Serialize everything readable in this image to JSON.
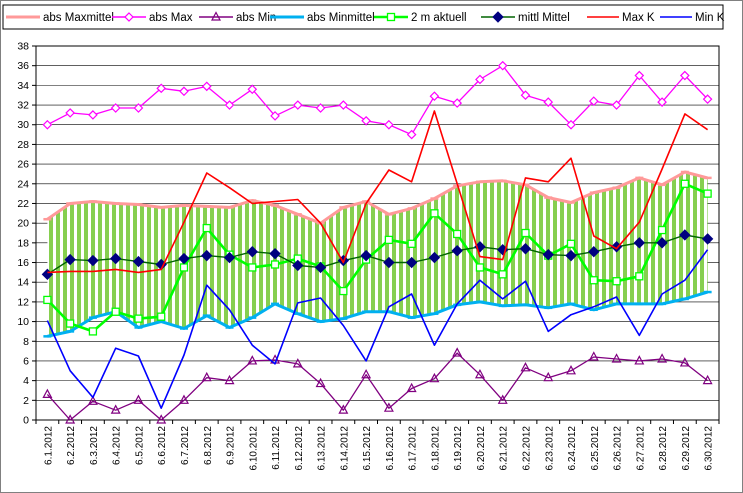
{
  "chart_data": {
    "type": "line",
    "title": "",
    "xlabel": "",
    "ylabel": "",
    "ylim": [
      0,
      38
    ],
    "y_ticks": [
      0,
      2,
      4,
      6,
      8,
      10,
      12,
      14,
      16,
      18,
      20,
      22,
      24,
      26,
      28,
      30,
      32,
      34,
      36,
      38
    ],
    "grid": true,
    "legend_position": "top",
    "band": "Hatched green band between abs Minmittel and abs Maxmittel",
    "categories": [
      "6.1.2012",
      "6.2.2012",
      "6.3.2012",
      "6.4.2012",
      "6.5.2012",
      "6.6.2012",
      "6.7.2012",
      "6.8.2012",
      "6.9.2012",
      "6.10.2012",
      "6.11.2012",
      "6.12.2012",
      "6.13.2012",
      "6.14.2012",
      "6.15.2012",
      "6.16.2012",
      "6.17.2012",
      "6.18.2012",
      "6.19.2012",
      "6.20.2012",
      "6.21.2012",
      "6.22.2012",
      "6.23.2012",
      "6.24.2012",
      "6.25.2012",
      "6.26.2012",
      "6.27.2012",
      "6.28.2012",
      "6.29.2012",
      "6.30.2012"
    ],
    "series": [
      {
        "name": "abs Maxmittel",
        "color": "#ff9999",
        "marker": "dash",
        "values": [
          20.4,
          22.0,
          22.2,
          22.0,
          21.9,
          21.6,
          21.8,
          21.7,
          21.6,
          22.3,
          21.8,
          20.9,
          20.0,
          21.6,
          22.2,
          20.9,
          21.5,
          22.5,
          23.8,
          24.2,
          24.3,
          23.9,
          22.6,
          22.1,
          23.1,
          23.6,
          24.6,
          23.9,
          25.2,
          24.6
        ]
      },
      {
        "name": "abs Max",
        "color": "#ff00ff",
        "marker": "diamond-open",
        "values": [
          30.0,
          31.2,
          31.0,
          31.7,
          31.7,
          33.7,
          33.4,
          33.9,
          32.0,
          33.6,
          30.9,
          32.0,
          31.7,
          32.0,
          30.4,
          30.0,
          29.0,
          32.9,
          32.2,
          34.6,
          36.0,
          33.0,
          32.3,
          30.0,
          32.4,
          32.0,
          35.0,
          32.3,
          35.0,
          32.6
        ]
      },
      {
        "name": "abs Min",
        "color": "#800080",
        "marker": "triangle-open",
        "values": [
          2.6,
          0.0,
          1.9,
          1.0,
          2.0,
          0.0,
          2.0,
          4.3,
          4.0,
          6.0,
          6.1,
          5.7,
          3.7,
          1.0,
          4.6,
          1.2,
          3.2,
          4.2,
          6.8,
          4.6,
          2.0,
          5.3,
          4.3,
          5.0,
          6.4,
          6.2,
          6.0,
          6.2,
          5.8,
          4.0
        ]
      },
      {
        "name": "abs Minmittel",
        "color": "#00b0f0",
        "marker": "dash",
        "values": [
          8.5,
          9.0,
          10.4,
          11.0,
          9.4,
          10.0,
          9.3,
          10.6,
          9.4,
          10.4,
          11.8,
          10.8,
          10.0,
          10.3,
          11.0,
          11.0,
          10.4,
          10.8,
          11.7,
          12.0,
          11.6,
          11.7,
          11.4,
          11.8,
          11.2,
          11.8,
          11.8,
          11.8,
          12.3,
          13.0
        ]
      },
      {
        "name": "2 m aktuell",
        "color": "#00ff00",
        "marker": "square-open",
        "values": [
          12.2,
          9.8,
          9.0,
          11.0,
          10.3,
          10.5,
          15.5,
          19.5,
          16.8,
          15.5,
          15.8,
          16.4,
          15.6,
          13.1,
          16.3,
          18.3,
          17.9,
          21.0,
          18.9,
          15.5,
          14.8,
          19.0,
          16.7,
          17.9,
          14.2,
          14.1,
          14.6,
          19.3,
          24.0,
          23.0
        ]
      },
      {
        "name": "mittl Mittel",
        "color": "#006400",
        "marker": "diamond-filled",
        "values": [
          14.8,
          16.3,
          16.2,
          16.4,
          16.1,
          15.8,
          16.4,
          16.7,
          16.5,
          17.1,
          16.9,
          15.7,
          15.5,
          16.2,
          16.7,
          16.0,
          16.0,
          16.5,
          17.2,
          17.6,
          17.3,
          17.4,
          16.8,
          16.7,
          17.1,
          17.6,
          18.0,
          18.0,
          18.8,
          18.4
        ]
      },
      {
        "name": "Max K",
        "color": "#ff0000",
        "marker": "none",
        "values": [
          15.0,
          15.1,
          15.1,
          15.3,
          15.0,
          15.3,
          20.1,
          25.1,
          23.6,
          22.0,
          22.2,
          22.4,
          20.0,
          16.0,
          22.0,
          25.4,
          24.2,
          31.4,
          24.0,
          16.6,
          16.3,
          24.6,
          24.2,
          26.6,
          18.7,
          17.4,
          20.1,
          25.5,
          31.1,
          29.5
        ]
      },
      {
        "name": "Min K",
        "color": "#0000ff",
        "marker": "none",
        "values": [
          10.1,
          5.0,
          2.3,
          7.3,
          6.5,
          1.2,
          6.6,
          13.7,
          11.2,
          7.6,
          5.7,
          11.9,
          12.4,
          9.6,
          6.0,
          11.5,
          12.8,
          7.6,
          11.8,
          14.2,
          12.3,
          14.1,
          9.0,
          10.7,
          11.5,
          12.5,
          8.6,
          12.8,
          14.2,
          17.3
        ]
      }
    ]
  }
}
